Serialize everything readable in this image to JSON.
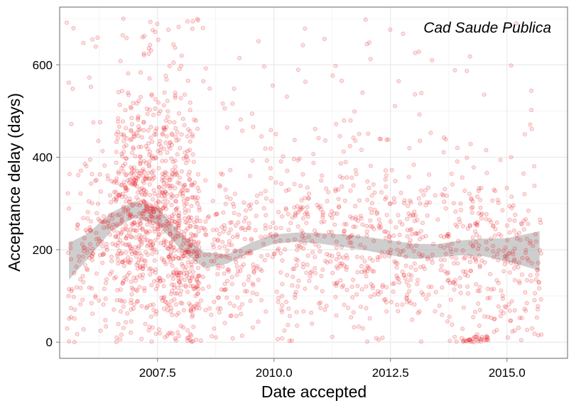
{
  "chart_data": {
    "type": "scatter",
    "title": "",
    "annotation": "Cad Saude Publica",
    "xlabel": "Date accepted",
    "ylabel": "Acceptance delay (days)",
    "xlim": [
      2005.4,
      2016.3
    ],
    "ylim": [
      -35,
      725
    ],
    "xticks": [
      2007.5,
      2010.0,
      2012.5,
      2015.0
    ],
    "xtick_labels": [
      "2007.5",
      "2010.0",
      "2012.5",
      "2015.0"
    ],
    "yticks": [
      0,
      200,
      400,
      600
    ],
    "ytick_labels": [
      "0",
      "200",
      "400",
      "600"
    ],
    "grid": true,
    "legend": "none",
    "point_color": "#e8141c",
    "band_color": "#b0b0b0",
    "smooth": {
      "x": [
        2005.6,
        2006.0,
        2006.5,
        2007.0,
        2007.5,
        2008.0,
        2008.5,
        2009.0,
        2009.5,
        2010.0,
        2010.5,
        2011.0,
        2011.5,
        2012.0,
        2012.5,
        2013.0,
        2013.5,
        2014.0,
        2014.5,
        2015.0,
        2015.7
      ],
      "lower": [
        135,
        180,
        240,
        270,
        255,
        200,
        160,
        170,
        195,
        213,
        217,
        213,
        206,
        198,
        188,
        180,
        183,
        188,
        186,
        175,
        155
      ],
      "upper": [
        215,
        235,
        280,
        305,
        290,
        235,
        195,
        190,
        215,
        233,
        237,
        236,
        233,
        228,
        220,
        213,
        212,
        220,
        224,
        225,
        240
      ]
    },
    "points_note": "individual articles"
  }
}
